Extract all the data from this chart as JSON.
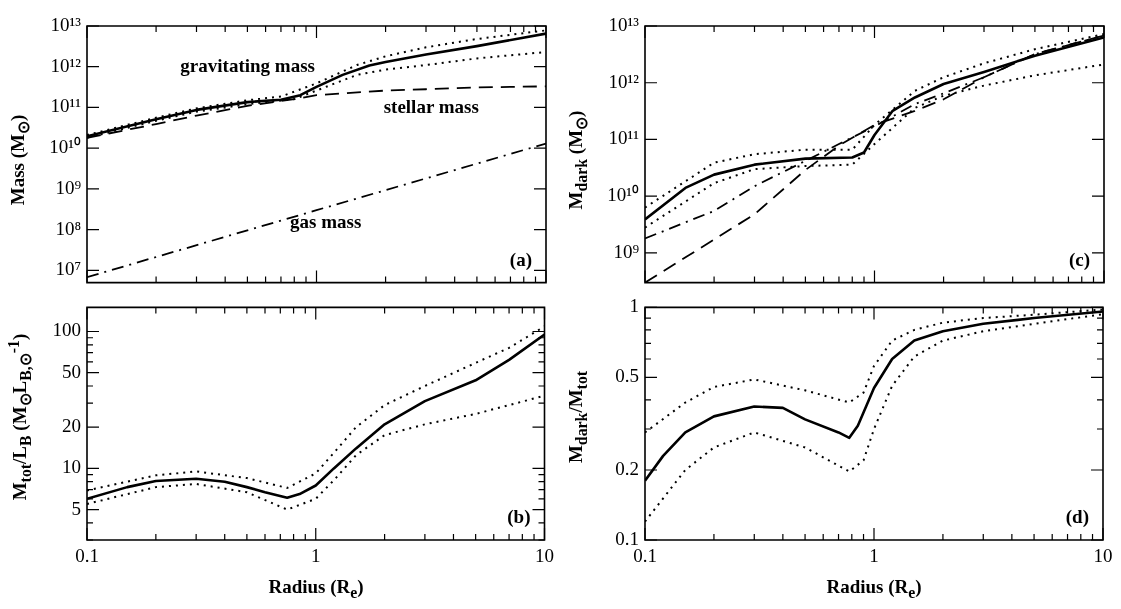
{
  "chart_data": [
    {
      "type": "line",
      "ylabel": "Mass (M$_{⊙}$)",
      "log": "xy",
      "marker": "none",
      "tick_labels": "y",
      "xlim": [
        0.1,
        10
      ],
      "xticks": [
        0.1,
        {
          "value": 0.2,
          "label": null
        },
        {
          "value": 0.3,
          "label": null
        },
        {
          "value": 0.4,
          "label": null
        },
        {
          "value": 0.5,
          "label": null
        },
        {
          "value": 0.6,
          "label": null
        },
        {
          "value": 0.7,
          "label": null
        },
        {
          "value": 0.8,
          "label": null
        },
        {
          "value": 0.9,
          "label": null
        },
        1,
        {
          "value": 2,
          "label": null
        },
        {
          "value": 3,
          "label": null
        },
        {
          "value": 4,
          "label": null
        },
        {
          "value": 5,
          "label": null
        },
        {
          "value": 6,
          "label": null
        },
        {
          "value": 7,
          "label": null
        },
        {
          "value": 8,
          "label": null
        },
        {
          "value": 9,
          "label": null
        },
        10
      ],
      "ylim": [
        5000000,
        10000000000000
      ],
      "yticks": [
        {
          "value": 10000000,
          "label": "10⁷"
        },
        {
          "value": 100000000,
          "label": "10⁸"
        },
        {
          "value": 1000000000,
          "label": "10⁹"
        },
        {
          "value": 10000000000,
          "label": "10¹⁰"
        },
        {
          "value": 100000000000,
          "label": "10¹¹"
        },
        {
          "value": 1000000000000,
          "label": "10¹²"
        },
        {
          "value": 10000000000000,
          "label": "10¹³"
        }
      ],
      "annotations": [
        "gravitating mass",
        "stellar mass",
        "gas mass",
        "(a)"
      ],
      "series": [
        {
          "color": "#000000",
          "line_style": "solid",
          "x": [
            0.1,
            0.2,
            0.3,
            0.5,
            0.7,
            0.85,
            1,
            1.3,
            1.7,
            2,
            3,
            5,
            10
          ],
          "values": [
            19500000000.0,
            51000000000.0,
            87000000000.0,
            135000000000.0,
            155000000000.0,
            200000000000.0,
            320000000000.0,
            630000000000.0,
            1070000000000.0,
            1300000000000.0,
            2000000000000.0,
            3200000000000.0,
            6500000000000.0
          ]
        },
        {
          "color": "#000000",
          "line_style": "dotted",
          "x": [
            0.1,
            0.2,
            0.3,
            0.5,
            0.7,
            1,
            1.5,
            2,
            3,
            5,
            10
          ],
          "values": [
            21000000000.0,
            56000000000.0,
            95000000000.0,
            150000000000.0,
            185000000000.0,
            390000000000.0,
            1100000000000.0,
            1800000000000.0,
            3000000000000.0,
            4800000000000.0,
            7800000000000.0
          ]
        },
        {
          "color": "#000000",
          "line_style": "dotted",
          "x": [
            0.1,
            0.2,
            0.3,
            0.5,
            0.8,
            1,
            1.5,
            2,
            3,
            5,
            10
          ],
          "values": [
            18000000000.0,
            47000000000.0,
            79000000000.0,
            120000000000.0,
            160000000000.0,
            260000000000.0,
            630000000000.0,
            850000000000.0,
            1100000000000.0,
            1600000000000.0,
            2300000000000.0
          ]
        },
        {
          "color": "#000000",
          "line_style": "dashed",
          "x": [
            0.1,
            0.2,
            0.3,
            0.5,
            0.8,
            1,
            2,
            3,
            5,
            10
          ],
          "values": [
            18000000000.0,
            39000000000.0,
            63000000000.0,
            110000000000.0,
            160000000000.0,
            200000000000.0,
            260000000000.0,
            280000000000.0,
            310000000000.0,
            330000000000.0
          ]
        },
        {
          "color": "#000000",
          "line_style": "dashdot",
          "x": [
            0.1,
            1,
            10
          ],
          "values": [
            6800000.0,
            300000000.0,
            13000000000.0
          ]
        }
      ]
    },
    {
      "type": "line",
      "xlabel": "Radius (R$_{e}$)",
      "ylabel": "M$_{tot}$/L$_{B}$ (M$_{⊙}$L$_{B,⊙}$$^{-1}$)",
      "log": "xy",
      "marker": "none",
      "xlim": [
        0.1,
        10
      ],
      "xticks": [
        0.1,
        {
          "value": 0.2,
          "label": null
        },
        {
          "value": 0.3,
          "label": null
        },
        {
          "value": 0.4,
          "label": null
        },
        {
          "value": 0.5,
          "label": null
        },
        {
          "value": 0.6,
          "label": null
        },
        {
          "value": 0.7,
          "label": null
        },
        {
          "value": 0.8,
          "label": null
        },
        {
          "value": 0.9,
          "label": null
        },
        1,
        {
          "value": 2,
          "label": null
        },
        {
          "value": 3,
          "label": null
        },
        {
          "value": 4,
          "label": null
        },
        {
          "value": 5,
          "label": null
        },
        {
          "value": 6,
          "label": null
        },
        {
          "value": 7,
          "label": null
        },
        {
          "value": 8,
          "label": null
        },
        {
          "value": 9,
          "label": null
        },
        10
      ],
      "ylim": [
        3,
        150
      ],
      "yticks": [
        {
          "value": 3,
          "label": null
        },
        {
          "value": 4,
          "label": null
        },
        5,
        {
          "value": 6,
          "label": null
        },
        {
          "value": 7,
          "label": null
        },
        {
          "value": 8,
          "label": null
        },
        {
          "value": 9,
          "label": null
        },
        10,
        20,
        {
          "value": 30,
          "label": null
        },
        {
          "value": 40,
          "label": null
        },
        50,
        {
          "value": 60,
          "label": null
        },
        {
          "value": 70,
          "label": null
        },
        {
          "value": 80,
          "label": null
        },
        {
          "value": 90,
          "label": null
        },
        100
      ],
      "annotations": [
        "(b)"
      ],
      "series": [
        {
          "color": "#000000",
          "line_style": "solid",
          "x": [
            0.1,
            0.15,
            0.2,
            0.3,
            0.4,
            0.5,
            0.6,
            0.75,
            0.85,
            1,
            1.2,
            1.5,
            2,
            3,
            5,
            7,
            10
          ],
          "values": [
            6.0,
            7.3,
            8.1,
            8.4,
            8.0,
            7.3,
            6.7,
            6.1,
            6.5,
            7.5,
            10,
            14,
            21,
            31,
            44,
            62,
            95
          ]
        },
        {
          "color": "#000000",
          "line_style": "dotted",
          "x": [
            0.1,
            0.2,
            0.3,
            0.5,
            0.75,
            1,
            1.2,
            1.5,
            2,
            3,
            5,
            7,
            10
          ],
          "values": [
            6.9,
            8.9,
            9.5,
            8.5,
            7.2,
            9.2,
            13,
            20,
            29,
            40,
            59,
            76,
            109
          ]
        },
        {
          "color": "#000000",
          "line_style": "dotted",
          "x": [
            0.1,
            0.2,
            0.3,
            0.5,
            0.75,
            1,
            1.2,
            1.5,
            2,
            3,
            5,
            7,
            10
          ],
          "values": [
            5.5,
            7.3,
            7.7,
            6.7,
            5.0,
            6.0,
            8.2,
            12.5,
            17.5,
            21,
            25,
            29,
            34
          ]
        }
      ]
    },
    {
      "type": "line",
      "ylabel": "M$_{dark}$ (M$_{⊙}$)",
      "log": "xy",
      "marker": "none",
      "tick_labels": "y",
      "xlim": [
        0.1,
        10
      ],
      "xticks": [
        0.1,
        {
          "value": 0.2,
          "label": null
        },
        {
          "value": 0.3,
          "label": null
        },
        {
          "value": 0.4,
          "label": null
        },
        {
          "value": 0.5,
          "label": null
        },
        {
          "value": 0.6,
          "label": null
        },
        {
          "value": 0.7,
          "label": null
        },
        {
          "value": 0.8,
          "label": null
        },
        {
          "value": 0.9,
          "label": null
        },
        1,
        {
          "value": 2,
          "label": null
        },
        {
          "value": 3,
          "label": null
        },
        {
          "value": 4,
          "label": null
        },
        {
          "value": 5,
          "label": null
        },
        {
          "value": 6,
          "label": null
        },
        {
          "value": 7,
          "label": null
        },
        {
          "value": 8,
          "label": null
        },
        {
          "value": 9,
          "label": null
        },
        10
      ],
      "ylim": [
        300000000,
        10000000000000
      ],
      "yticks": [
        {
          "value": 1000000000,
          "label": "10⁹"
        },
        {
          "value": 10000000000,
          "label": "10¹⁰"
        },
        {
          "value": 100000000000,
          "label": "10¹¹"
        },
        {
          "value": 1000000000000,
          "label": "10¹²"
        },
        {
          "value": 10000000000000,
          "label": "10¹³"
        }
      ],
      "annotations": [
        "(c)"
      ],
      "series": [
        {
          "color": "#000000",
          "line_style": "solid",
          "x": [
            0.1,
            0.15,
            0.2,
            0.3,
            0.5,
            0.8,
            0.9,
            1,
            1.2,
            1.5,
            2,
            3,
            5,
            10
          ],
          "values": [
            3900000000.0,
            14000000000.0,
            24000000000.0,
            36000000000.0,
            46000000000.0,
            48000000000.0,
            59000000000.0,
            120000000000.0,
            320000000000.0,
            550000000000.0,
            950000000000.0,
            1550000000000.0,
            3000000000000.0,
            6300000000000.0
          ]
        },
        {
          "color": "#000000",
          "line_style": "dotted",
          "x": [
            0.1,
            0.2,
            0.3,
            0.5,
            0.8,
            1,
            1.5,
            2,
            3,
            5,
            10
          ],
          "values": [
            6300000000.0,
            39000000000.0,
            55000000000.0,
            66000000000.0,
            66000000000.0,
            180000000000.0,
            720000000000.0,
            1250000000000.0,
            2200000000000.0,
            3900000000000.0,
            7200000000000.0
          ]
        },
        {
          "color": "#000000",
          "line_style": "dotted",
          "x": [
            0.1,
            0.2,
            0.3,
            0.5,
            0.8,
            1,
            1.5,
            2,
            3,
            5,
            10
          ],
          "values": [
            2800000000.0,
            17000000000.0,
            30000000000.0,
            34000000000.0,
            36000000000.0,
            83000000000.0,
            360000000000.0,
            590000000000.0,
            890000000000.0,
            1350000000000.0,
            2100000000000.0
          ]
        },
        {
          "color": "#000000",
          "line_style": "dashdot",
          "x": [
            0.1,
            0.2,
            0.3,
            0.5,
            0.7,
            1,
            1.5,
            2,
            3,
            5,
            10
          ],
          "values": [
            1800000000.0,
            5500000000.0,
            15000000000.0,
            42000000000.0,
            83000000000.0,
            170000000000.0,
            420000000000.0,
            650000000000.0,
            1250000000000.0,
            3200000000000.0,
            6800000000000.0
          ]
        },
        {
          "color": "#000000",
          "line_style": "dashed",
          "x": [
            0.1,
            0.3,
            0.5,
            0.7,
            1,
            1.5,
            2,
            3,
            5,
            10
          ],
          "values": [
            300000000.0,
            4800000000.0,
            29000000000.0,
            78000000000.0,
            180000000000.0,
            320000000000.0,
            510000000000.0,
            1250000000000.0,
            3200000000000.0,
            6800000000000.0
          ]
        }
      ]
    },
    {
      "type": "line",
      "xlabel": "Radius (R$_{e}$)",
      "ylabel": "M$_{dark}$/M$_{tot}$",
      "log": "xy",
      "marker": "none",
      "xlim": [
        0.1,
        10
      ],
      "xticks": [
        0.1,
        {
          "value": 0.2,
          "label": null
        },
        {
          "value": 0.3,
          "label": null
        },
        {
          "value": 0.4,
          "label": null
        },
        {
          "value": 0.5,
          "label": null
        },
        {
          "value": 0.6,
          "label": null
        },
        {
          "value": 0.7,
          "label": null
        },
        {
          "value": 0.8,
          "label": null
        },
        {
          "value": 0.9,
          "label": null
        },
        1,
        {
          "value": 2,
          "label": null
        },
        {
          "value": 3,
          "label": null
        },
        {
          "value": 4,
          "label": null
        },
        {
          "value": 5,
          "label": null
        },
        {
          "value": 6,
          "label": null
        },
        {
          "value": 7,
          "label": null
        },
        {
          "value": 8,
          "label": null
        },
        {
          "value": 9,
          "label": null
        },
        10
      ],
      "ylim": [
        0.1,
        1
      ],
      "yticks": [
        0.1,
        0.2,
        {
          "value": 0.3,
          "label": null
        },
        {
          "value": 0.4,
          "label": null
        },
        0.5,
        {
          "value": 0.6,
          "label": null
        },
        {
          "value": 0.7,
          "label": null
        },
        {
          "value": 0.8,
          "label": null
        },
        {
          "value": 0.9,
          "label": null
        },
        1
      ],
      "annotations": [
        "(d)"
      ],
      "series": [
        {
          "color": "#000000",
          "line_style": "solid",
          "x": [
            0.1,
            0.12,
            0.15,
            0.2,
            0.3,
            0.4,
            0.5,
            0.7,
            0.78,
            0.85,
            1,
            1.2,
            1.5,
            2,
            3,
            5,
            10
          ],
          "values": [
            0.18,
            0.23,
            0.29,
            0.34,
            0.375,
            0.37,
            0.33,
            0.29,
            0.275,
            0.31,
            0.45,
            0.6,
            0.72,
            0.79,
            0.85,
            0.9,
            0.96
          ]
        },
        {
          "color": "#000000",
          "line_style": "dotted",
          "x": [
            0.1,
            0.15,
            0.2,
            0.3,
            0.5,
            0.78,
            0.9,
            1,
            1.2,
            1.5,
            2,
            3,
            5,
            10
          ],
          "values": [
            0.29,
            0.39,
            0.455,
            0.49,
            0.44,
            0.39,
            0.43,
            0.56,
            0.72,
            0.8,
            0.86,
            0.9,
            0.93,
            0.98
          ]
        },
        {
          "color": "#000000",
          "line_style": "dotted",
          "x": [
            0.1,
            0.15,
            0.2,
            0.3,
            0.5,
            0.78,
            0.9,
            1,
            1.2,
            1.5,
            2,
            3,
            5,
            10
          ],
          "values": [
            0.12,
            0.2,
            0.25,
            0.29,
            0.25,
            0.197,
            0.22,
            0.3,
            0.46,
            0.615,
            0.72,
            0.79,
            0.85,
            0.935
          ]
        }
      ]
    }
  ]
}
